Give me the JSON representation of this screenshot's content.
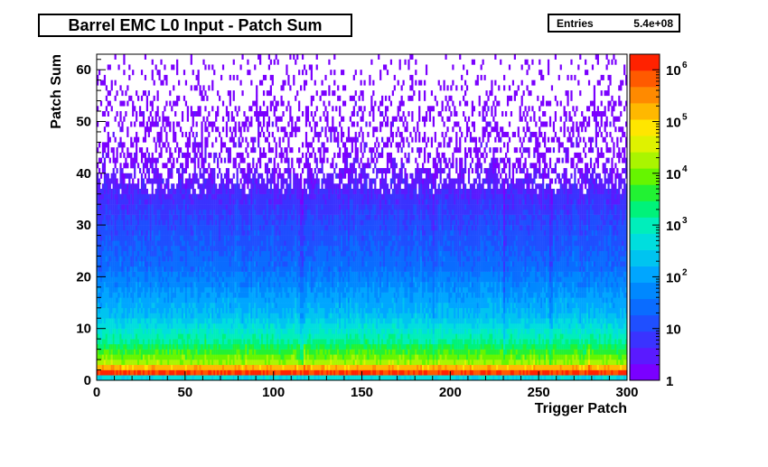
{
  "chart_data": {
    "type": "heatmap",
    "title": "Barrel EMC L0 Input - Patch Sum",
    "xlabel": "Trigger Patch",
    "ylabel": "Patch Sum",
    "xlim": [
      0,
      300
    ],
    "ylim": [
      0,
      63
    ],
    "x_ticks": [
      "0",
      "50",
      "100",
      "150",
      "200",
      "250",
      "300"
    ],
    "y_ticks": [
      "0",
      "10",
      "20",
      "30",
      "40",
      "50",
      "60"
    ],
    "z_scale": "log",
    "zlim": [
      1,
      2000000
    ],
    "z_ticks": [
      {
        "base": "1",
        "exp": ""
      },
      {
        "base": "10",
        "exp": ""
      },
      {
        "base": "10",
        "exp": "2"
      },
      {
        "base": "10",
        "exp": "3"
      },
      {
        "base": "10",
        "exp": "4"
      },
      {
        "base": "10",
        "exp": "5"
      },
      {
        "base": "10",
        "exp": "6"
      }
    ],
    "stats": {
      "label": "Entries",
      "value": "5.4e+08"
    },
    "palette": [
      "#7a00ff",
      "#5a1aff",
      "#3a33ff",
      "#1f4fff",
      "#0a6cff",
      "#0088ff",
      "#00a6ff",
      "#00c4f0",
      "#00dede",
      "#00eebb",
      "#00f27a",
      "#22f233",
      "#66f500",
      "#aaf500",
      "#dff200",
      "#ffe600",
      "#ffb800",
      "#ff8a00",
      "#ff5a00",
      "#ff2200"
    ]
  }
}
